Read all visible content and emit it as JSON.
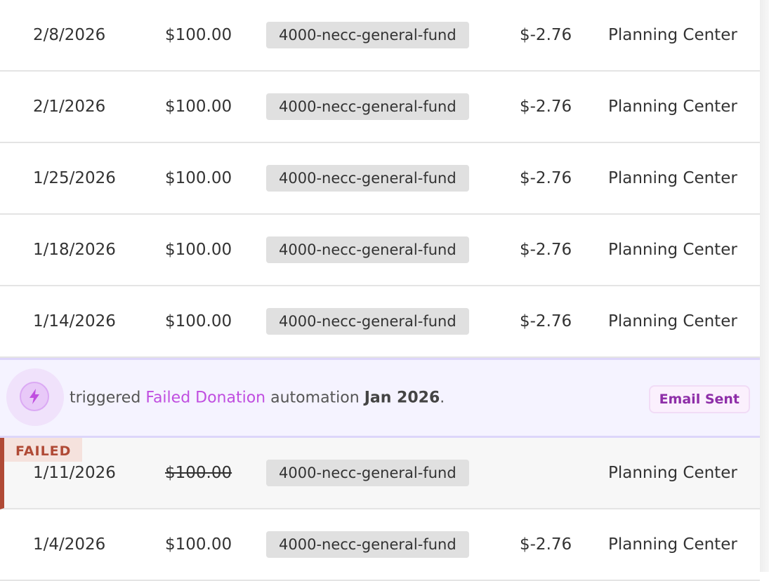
{
  "rows_top": [
    {
      "date": "2/8/2026",
      "amount": "$100.00",
      "fund": "4000-necc-general-fund",
      "fee": "$-2.76",
      "source": "Planning Center"
    },
    {
      "date": "2/1/2026",
      "amount": "$100.00",
      "fund": "4000-necc-general-fund",
      "fee": "$-2.76",
      "source": "Planning Center"
    },
    {
      "date": "1/25/2026",
      "amount": "$100.00",
      "fund": "4000-necc-general-fund",
      "fee": "$-2.76",
      "source": "Planning Center"
    },
    {
      "date": "1/18/2026",
      "amount": "$100.00",
      "fund": "4000-necc-general-fund",
      "fee": "$-2.76",
      "source": "Planning Center"
    },
    {
      "date": "1/14/2026",
      "amount": "$100.00",
      "fund": "4000-necc-general-fund",
      "fee": "$-2.76",
      "source": "Planning Center"
    }
  ],
  "automation": {
    "prefix": "triggered",
    "name": "Failed Donation",
    "middle": "automation",
    "period": "Jan 2026",
    "suffix": ".",
    "status": "Email Sent",
    "icon": "lightning-bolt-icon",
    "accent": "#c04ee0"
  },
  "failed_row": {
    "badge": "FAILED",
    "date": "1/11/2026",
    "amount": "$100.00",
    "fund": "4000-necc-general-fund",
    "source": "Planning Center",
    "status_color": "#b04a36"
  },
  "rows_bottom": [
    {
      "date": "1/4/2026",
      "amount": "$100.00",
      "fund": "4000-necc-general-fund",
      "fee": "$-2.76",
      "source": "Planning Center"
    }
  ]
}
